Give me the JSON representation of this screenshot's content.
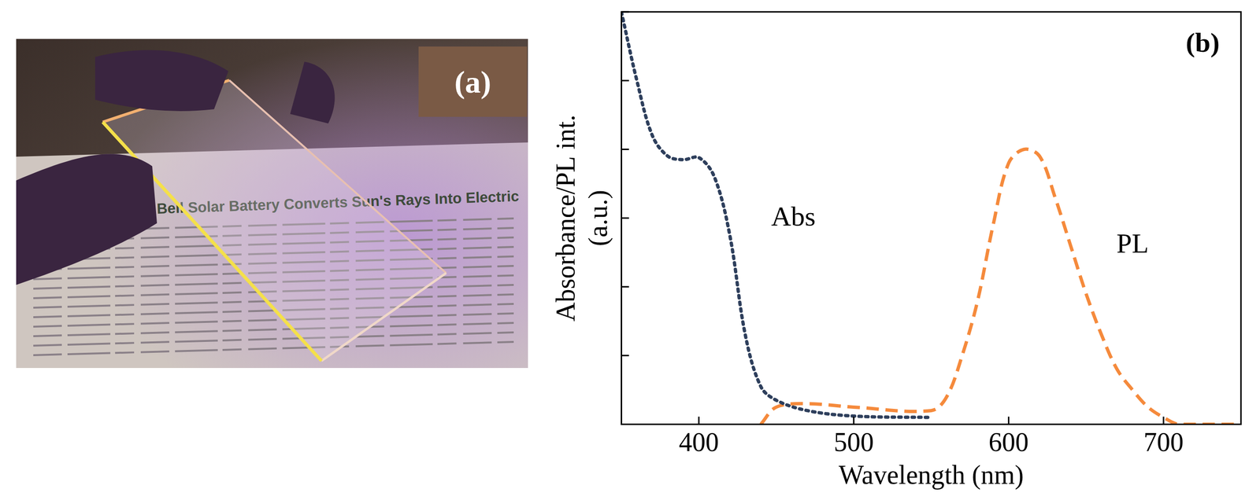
{
  "panel_a": {
    "label": "(a)",
    "headline": "Bell Solar Battery Converts Sun's Rays Into Electric"
  },
  "chart_data": {
    "type": "line",
    "title": "(b)",
    "x_label": "Wavelength (nm)",
    "y_label": [
      "Absorbance/PL int.",
      "(a.u.)"
    ],
    "xlim": [
      350,
      750
    ],
    "xticks": [
      400,
      500,
      600,
      700
    ],
    "ylim": [
      0,
      6
    ],
    "yticks": [
      0,
      1,
      2,
      3,
      4,
      5,
      6
    ],
    "tick_labels": "x",
    "grid": false,
    "annotations": [
      {
        "text": "Abs",
        "x": 461,
        "y": 3.0
      },
      {
        "text": "PL",
        "x": 680,
        "y": 2.6
      }
    ],
    "series": [
      {
        "name": "Abs",
        "color": "#2e3f5c",
        "line_style": "dotted",
        "x": [
          350,
          360,
          370,
          380,
          390,
          400,
          410,
          420,
          430,
          440,
          450,
          470,
          500,
          550
        ],
        "values": [
          6.0,
          5.0,
          4.2,
          3.9,
          3.85,
          3.88,
          3.6,
          2.75,
          1.3,
          0.55,
          0.35,
          0.2,
          0.12,
          0.1
        ]
      },
      {
        "name": "PL",
        "color": "#f58a3c",
        "line_style": "dashed",
        "x": [
          440,
          450,
          470,
          500,
          550,
          560,
          570,
          580,
          590,
          600,
          610,
          620,
          630,
          640,
          650,
          660,
          670,
          680,
          690,
          700,
          710,
          750
        ],
        "values": [
          0.0,
          0.25,
          0.3,
          0.25,
          0.2,
          0.4,
          1.0,
          1.8,
          2.9,
          3.8,
          4.0,
          3.9,
          3.3,
          2.6,
          1.9,
          1.3,
          0.8,
          0.5,
          0.25,
          0.1,
          0.0,
          0.0
        ]
      }
    ]
  }
}
